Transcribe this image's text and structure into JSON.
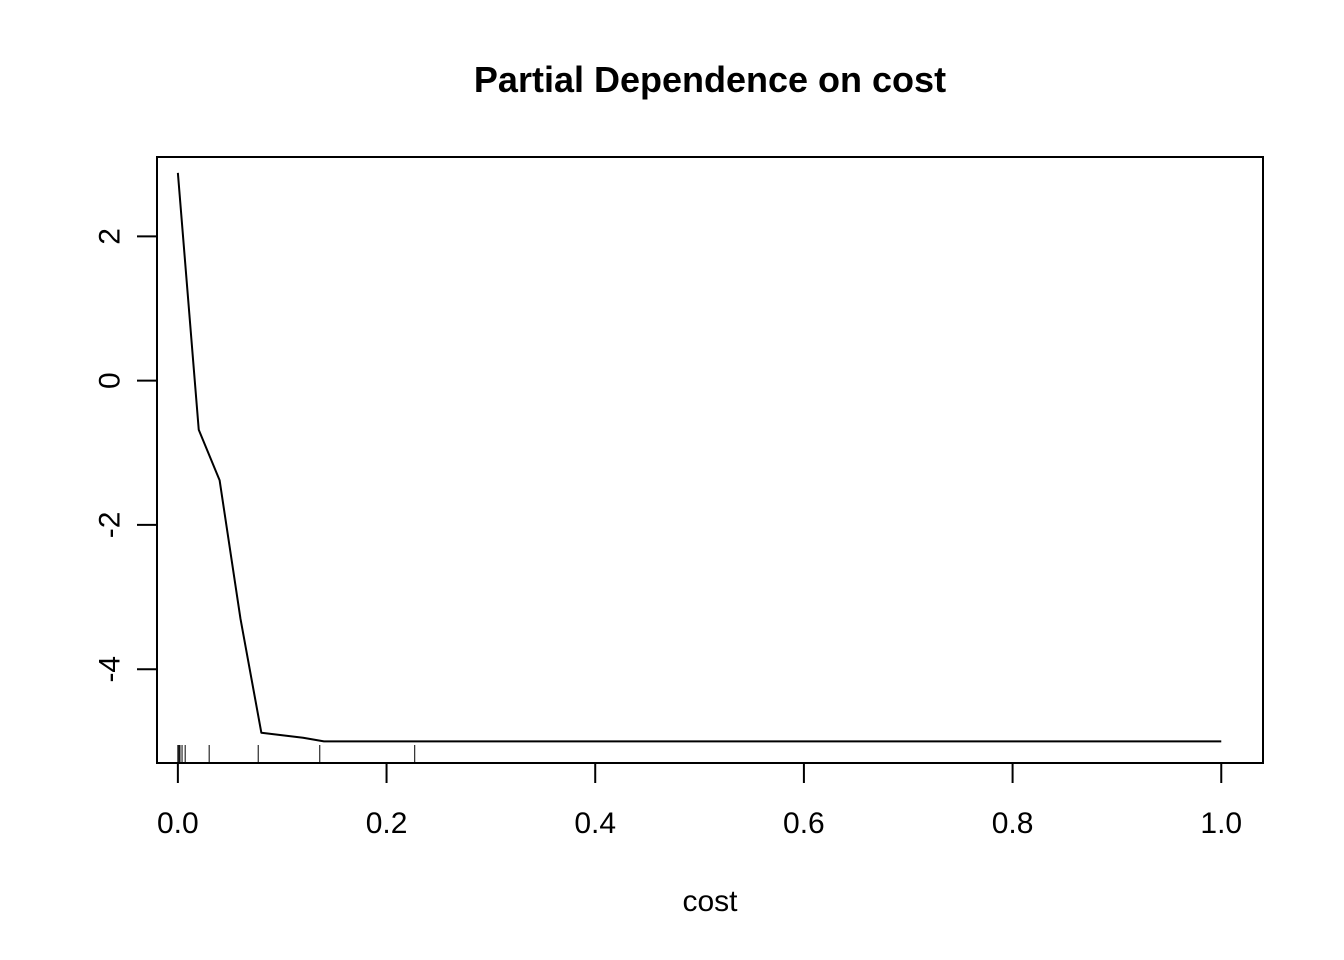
{
  "chart_data": {
    "type": "line",
    "title": "Partial Dependence on cost",
    "xlabel": "cost",
    "ylabel": "",
    "xlim": [
      -0.02,
      1.04
    ],
    "ylim": [
      -5.3,
      3.1
    ],
    "x_ticks": [
      0.0,
      0.2,
      0.4,
      0.6,
      0.8,
      1.0
    ],
    "x_tick_labels": [
      "0.0",
      "0.2",
      "0.4",
      "0.6",
      "0.8",
      "1.0"
    ],
    "y_ticks": [
      -4,
      -2,
      0,
      2
    ],
    "y_tick_labels": [
      "-4",
      "-2",
      "0",
      "2"
    ],
    "grid": false,
    "legend": "none",
    "line_color": "#000000",
    "series": [
      {
        "x": [
          0.0,
          0.02,
          0.04,
          0.06,
          0.08,
          0.12,
          0.14,
          0.2,
          0.4,
          0.6,
          0.8,
          1.0
        ],
        "y": [
          2.88,
          -0.68,
          -1.38,
          -3.3,
          -4.88,
          -4.95,
          -5.0,
          -5.0,
          -5.0,
          -5.0,
          -5.0,
          -5.0
        ]
      }
    ],
    "rug": [
      0.0,
      0.001,
      0.002,
      0.004,
      0.007,
      0.03,
      0.077,
      0.136,
      0.227
    ]
  }
}
